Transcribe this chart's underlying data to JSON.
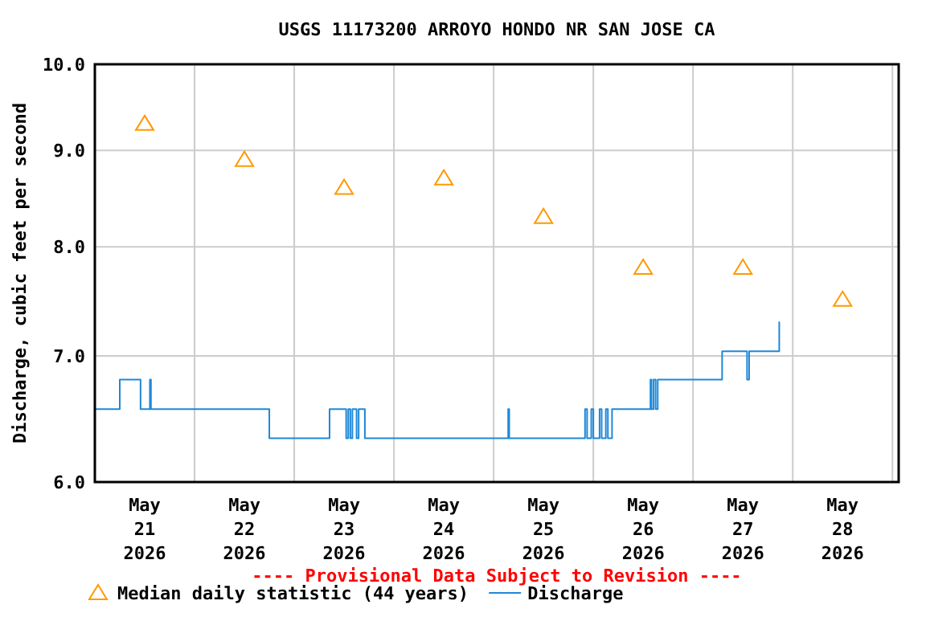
{
  "chart_data": {
    "type": "step",
    "title": "USGS 11173200 ARROYO HONDO NR SAN JOSE CA",
    "ylabel": "Discharge, cubic feet per second",
    "annotations": [
      "---- Provisional Data Subject to Revision ----"
    ],
    "log": "y",
    "grid": true,
    "legend": "bottom",
    "xlim": [
      "2026-05-21T00:00",
      "2026-05-29T01:30"
    ],
    "xticks": [
      {
        "value": "2026-05-21T00:00",
        "label": null
      },
      {
        "value": "2026-05-21T12:00",
        "label": "May\n21\n2026"
      },
      {
        "value": "2026-05-22T00:00",
        "label": null
      },
      {
        "value": "2026-05-22T12:00",
        "label": "May\n22\n2026"
      },
      {
        "value": "2026-05-23T00:00",
        "label": null
      },
      {
        "value": "2026-05-23T12:00",
        "label": "May\n23\n2026"
      },
      {
        "value": "2026-05-24T00:00",
        "label": null
      },
      {
        "value": "2026-05-24T12:00",
        "label": "May\n24\n2026"
      },
      {
        "value": "2026-05-25T00:00",
        "label": null
      },
      {
        "value": "2026-05-25T12:00",
        "label": "May\n25\n2026"
      },
      {
        "value": "2026-05-26T00:00",
        "label": null
      },
      {
        "value": "2026-05-26T12:00",
        "label": "May\n26\n2026"
      },
      {
        "value": "2026-05-27T00:00",
        "label": null
      },
      {
        "value": "2026-05-27T12:00",
        "label": "May\n27\n2026"
      },
      {
        "value": "2026-05-28T00:00",
        "label": null
      },
      {
        "value": "2026-05-28T12:00",
        "label": "May\n28\n2026"
      },
      {
        "value": "2026-05-29T00:00",
        "label": null
      }
    ],
    "ylim": [
      6,
      10
    ],
    "yticks": [
      {
        "value": 6,
        "label": "6.0"
      },
      {
        "value": 7,
        "label": "7.0"
      },
      {
        "value": 8,
        "label": "8.0"
      },
      {
        "value": 9,
        "label": "9.0"
      },
      {
        "value": 10,
        "label": "10.0"
      }
    ],
    "series": [
      {
        "name": "Median daily statistic (44 years)",
        "type": "scatter",
        "marker": "triangle",
        "color": "#ff9900",
        "x": [
          "2026-05-21T12:00",
          "2026-05-22T12:00",
          "2026-05-23T12:00",
          "2026-05-24T12:00",
          "2026-05-25T12:00",
          "2026-05-26T12:00",
          "2026-05-27T12:00",
          "2026-05-28T12:00"
        ],
        "values": [
          9.3,
          8.9,
          8.6,
          8.7,
          8.3,
          7.8,
          7.8,
          7.5
        ]
      },
      {
        "name": "Discharge",
        "color": "#1f88d8",
        "x": [
          "2026-05-21T00:00",
          "2026-05-21T06:00",
          "2026-05-21T11:00",
          "2026-05-21T13:15",
          "2026-05-21T13:30",
          "2026-05-22T18:00",
          "2026-05-23T08:30",
          "2026-05-23T12:30",
          "2026-05-23T13:00",
          "2026-05-23T13:30",
          "2026-05-23T14:00",
          "2026-05-23T15:00",
          "2026-05-23T15:30",
          "2026-05-23T17:00",
          "2026-05-25T03:30",
          "2026-05-25T03:45",
          "2026-05-25T22:00",
          "2026-05-25T22:30",
          "2026-05-25T23:30",
          "2026-05-26T00:00",
          "2026-05-26T01:30",
          "2026-05-26T02:00",
          "2026-05-26T03:00",
          "2026-05-26T03:30",
          "2026-05-26T04:30",
          "2026-05-26T13:45",
          "2026-05-26T14:00",
          "2026-05-26T14:30",
          "2026-05-26T15:00",
          "2026-05-26T15:30",
          "2026-05-27T07:00",
          "2026-05-27T13:00",
          "2026-05-27T13:30",
          "2026-05-27T20:45"
        ],
        "values": [
          6.56,
          6.8,
          6.56,
          6.8,
          6.56,
          6.33,
          6.56,
          6.33,
          6.56,
          6.33,
          6.56,
          6.33,
          6.56,
          6.33,
          6.56,
          6.33,
          6.56,
          6.33,
          6.56,
          6.33,
          6.56,
          6.33,
          6.56,
          6.33,
          6.56,
          6.8,
          6.56,
          6.8,
          6.56,
          6.8,
          7.04,
          6.8,
          7.04,
          7.3
        ]
      }
    ]
  }
}
